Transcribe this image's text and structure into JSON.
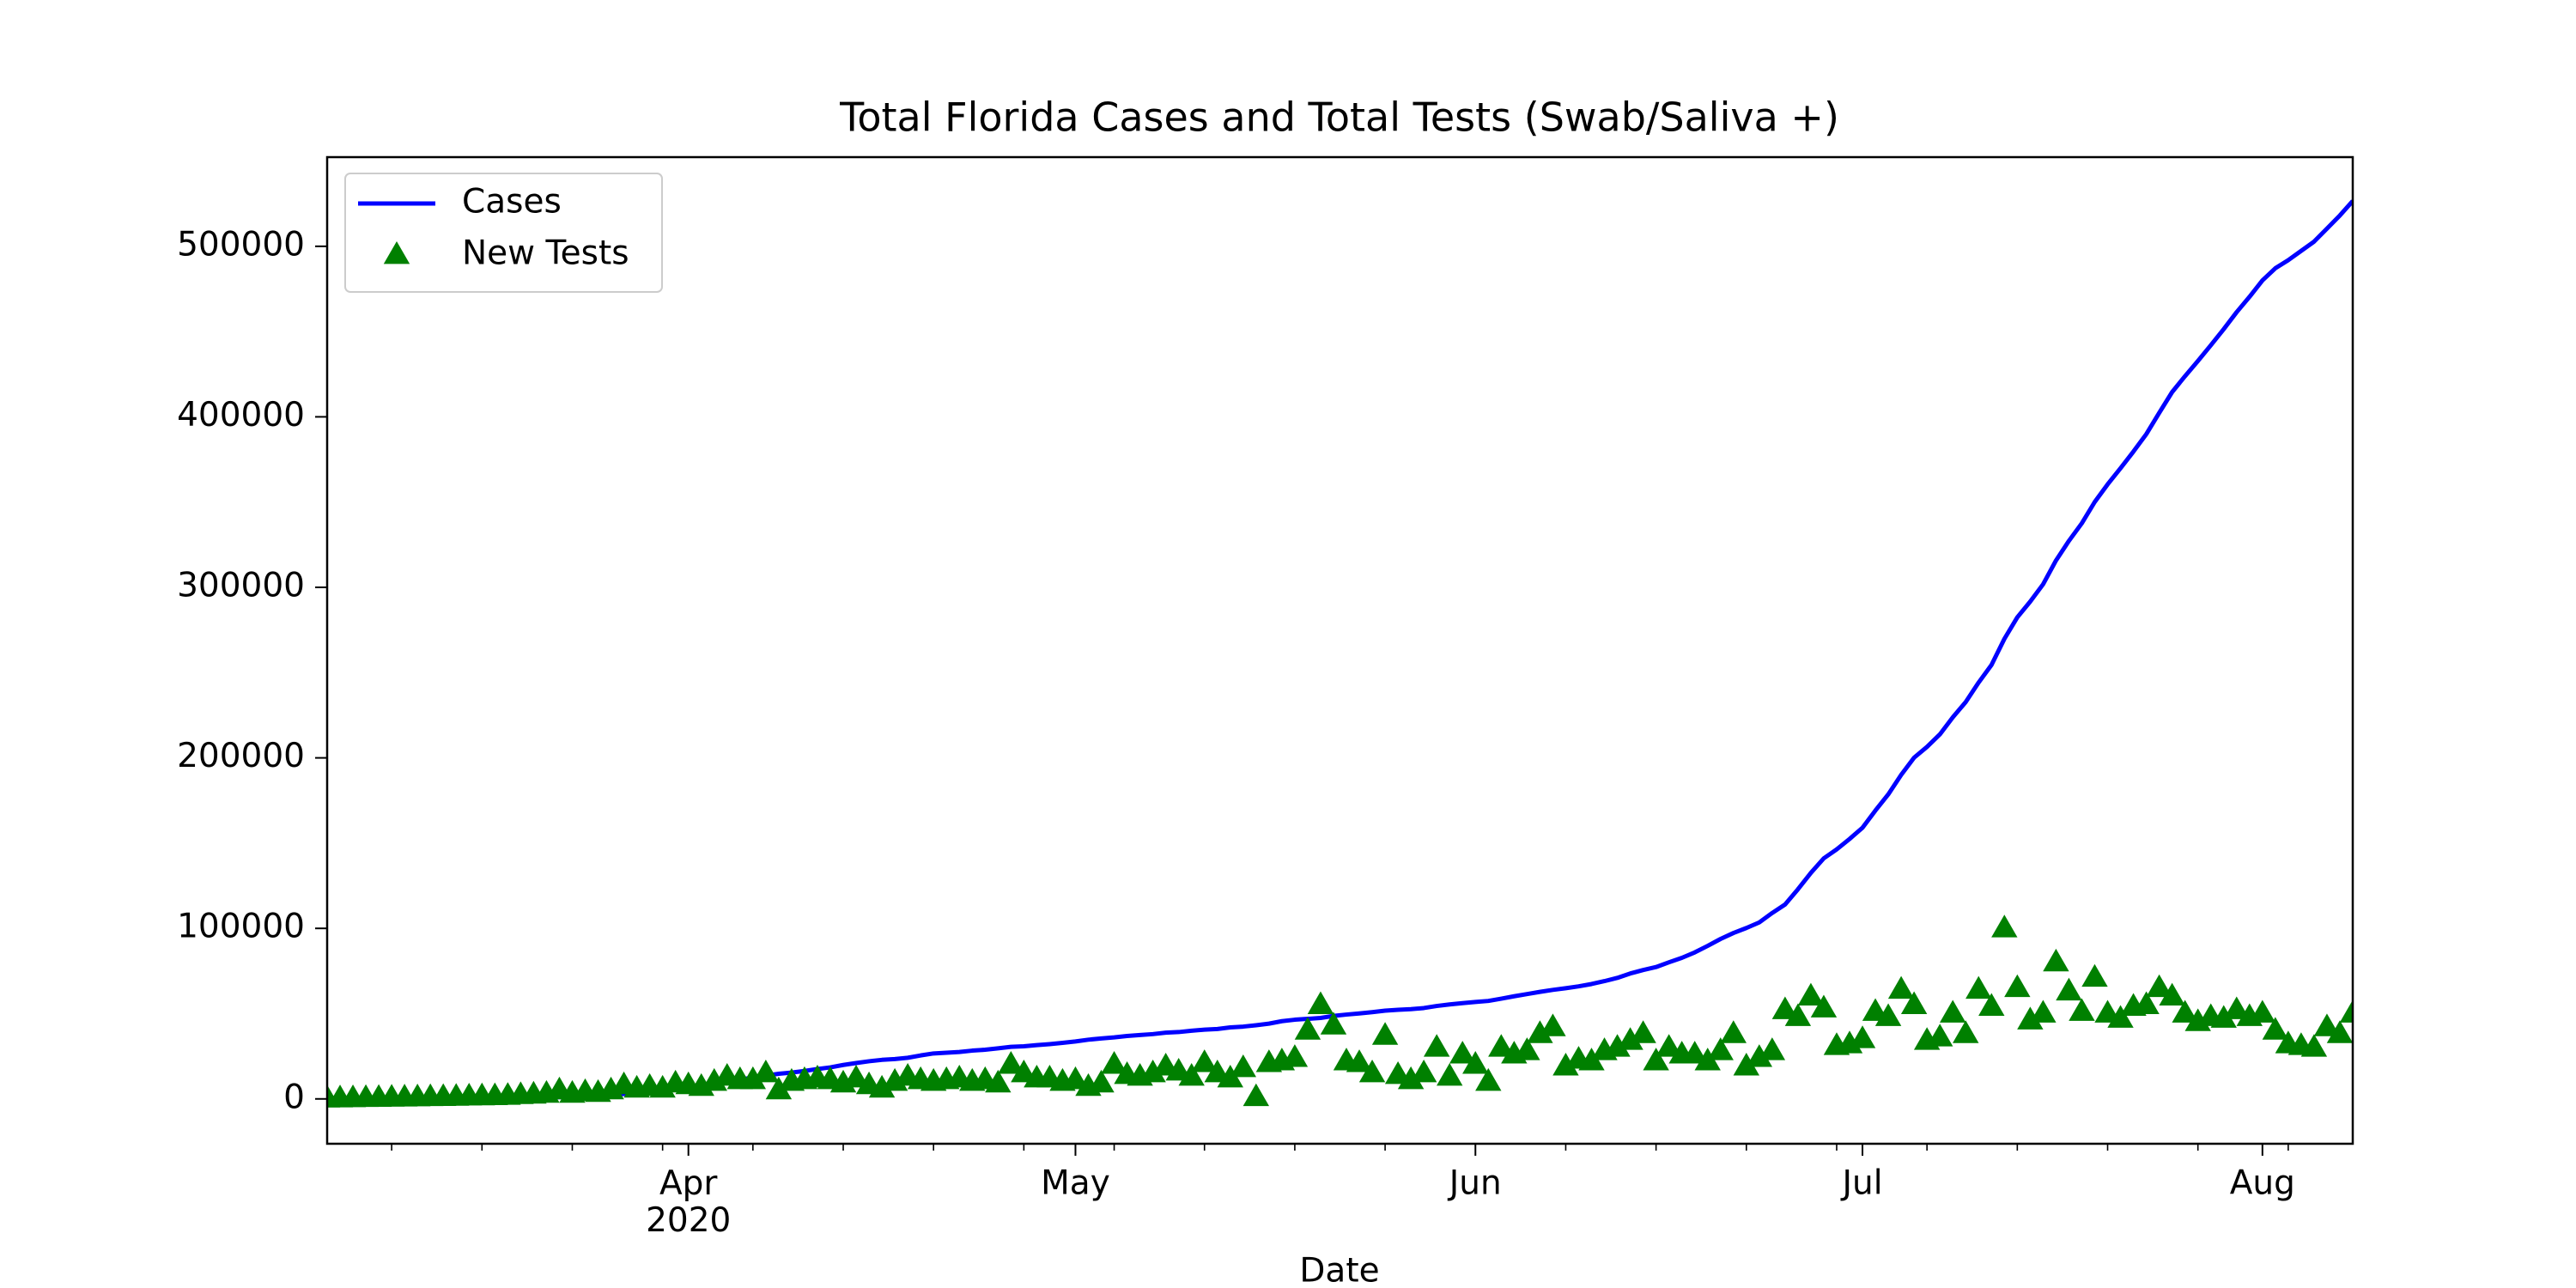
{
  "chart_data": {
    "type": "line",
    "title": "Total Florida Cases and Total Tests (Swab/Saliva +)",
    "xlabel": "Date",
    "x": [
      "2020-03-04",
      "2020-03-05",
      "2020-03-06",
      "2020-03-07",
      "2020-03-08",
      "2020-03-09",
      "2020-03-10",
      "2020-03-11",
      "2020-03-12",
      "2020-03-13",
      "2020-03-14",
      "2020-03-15",
      "2020-03-16",
      "2020-03-17",
      "2020-03-18",
      "2020-03-19",
      "2020-03-20",
      "2020-03-21",
      "2020-03-22",
      "2020-03-23",
      "2020-03-24",
      "2020-03-25",
      "2020-03-26",
      "2020-03-27",
      "2020-03-28",
      "2020-03-29",
      "2020-03-30",
      "2020-03-31",
      "2020-04-01",
      "2020-04-02",
      "2020-04-03",
      "2020-04-04",
      "2020-04-05",
      "2020-04-06",
      "2020-04-07",
      "2020-04-08",
      "2020-04-09",
      "2020-04-10",
      "2020-04-11",
      "2020-04-12",
      "2020-04-13",
      "2020-04-14",
      "2020-04-15",
      "2020-04-16",
      "2020-04-17",
      "2020-04-18",
      "2020-04-19",
      "2020-04-20",
      "2020-04-21",
      "2020-04-22",
      "2020-04-23",
      "2020-04-24",
      "2020-04-25",
      "2020-04-26",
      "2020-04-27",
      "2020-04-28",
      "2020-04-29",
      "2020-04-30",
      "2020-05-01",
      "2020-05-02",
      "2020-05-03",
      "2020-05-04",
      "2020-05-05",
      "2020-05-06",
      "2020-05-07",
      "2020-05-08",
      "2020-05-09",
      "2020-05-10",
      "2020-05-11",
      "2020-05-12",
      "2020-05-13",
      "2020-05-14",
      "2020-05-15",
      "2020-05-16",
      "2020-05-17",
      "2020-05-18",
      "2020-05-19",
      "2020-05-20",
      "2020-05-21",
      "2020-05-22",
      "2020-05-23",
      "2020-05-24",
      "2020-05-25",
      "2020-05-26",
      "2020-05-27",
      "2020-05-28",
      "2020-05-29",
      "2020-05-30",
      "2020-05-31",
      "2020-06-01",
      "2020-06-02",
      "2020-06-03",
      "2020-06-04",
      "2020-06-05",
      "2020-06-06",
      "2020-06-07",
      "2020-06-08",
      "2020-06-09",
      "2020-06-10",
      "2020-06-11",
      "2020-06-12",
      "2020-06-13",
      "2020-06-14",
      "2020-06-15",
      "2020-06-16",
      "2020-06-17",
      "2020-06-18",
      "2020-06-19",
      "2020-06-20",
      "2020-06-21",
      "2020-06-22",
      "2020-06-23",
      "2020-06-24",
      "2020-06-25",
      "2020-06-26",
      "2020-06-27",
      "2020-06-28",
      "2020-06-29",
      "2020-06-30",
      "2020-07-01",
      "2020-07-02",
      "2020-07-03",
      "2020-07-04",
      "2020-07-05",
      "2020-07-06",
      "2020-07-07",
      "2020-07-08",
      "2020-07-09",
      "2020-07-10",
      "2020-07-11",
      "2020-07-12",
      "2020-07-13",
      "2020-07-14",
      "2020-07-15",
      "2020-07-16",
      "2020-07-17",
      "2020-07-18",
      "2020-07-19",
      "2020-07-20",
      "2020-07-21",
      "2020-07-22",
      "2020-07-23",
      "2020-07-24",
      "2020-07-25",
      "2020-07-26",
      "2020-07-27",
      "2020-07-28",
      "2020-07-29",
      "2020-07-30",
      "2020-07-31",
      "2020-08-01",
      "2020-08-02",
      "2020-08-03",
      "2020-08-04",
      "2020-08-05",
      "2020-08-06",
      "2020-08-07",
      "2020-08-08"
    ],
    "series": [
      {
        "name": "Cases",
        "color": "#0000ff",
        "style": "line",
        "values": [
          2,
          4,
          7,
          10,
          13,
          13,
          15,
          21,
          31,
          47,
          70,
          100,
          155,
          216,
          314,
          390,
          520,
          763,
          1007,
          1227,
          1412,
          1682,
          2355,
          2900,
          3763,
          4038,
          5473,
          6338,
          6955,
          8010,
          9585,
          10268,
          11545,
          12350,
          13629,
          14747,
          15455,
          16364,
          17531,
          18494,
          19895,
          21019,
          22081,
          22897,
          23340,
          24119,
          25492,
          26660,
          27058,
          27495,
          28309,
          28832,
          29648,
          30533,
          30839,
          31528,
          32138,
          32846,
          33690,
          34728,
          35463,
          36078,
          36897,
          37439,
          38002,
          38828,
          39199,
          40001,
          40596,
          40982,
          41923,
          42402,
          43210,
          44138,
          45588,
          46442,
          46944,
          47471,
          48675,
          49451,
          50127,
          50867,
          51746,
          52255,
          52634,
          53285,
          54497,
          55424,
          56163,
          56830,
          57447,
          58764,
          60183,
          61488,
          62758,
          63938,
          64904,
          66000,
          67371,
          69069,
          70971,
          73552,
          75568,
          77326,
          80109,
          82719,
          85926,
          89748,
          93797,
          97291,
          100217,
          103503,
          109014,
          114018,
          122960,
          132545,
          141075,
          146341,
          152434,
          158997,
          169106,
          178594,
          190052,
          200111,
          206447,
          213794,
          223783,
          232718,
          244151,
          254511,
          269811,
          282435,
          291629,
          301810,
          315775,
          327241,
          337569,
          350047,
          360394,
          369834,
          379619,
          389868,
          402312,
          414511,
          423855,
          432747,
          441977,
          451423,
          461379,
          470386,
          480028,
          487132,
          491884,
          497330,
          502739,
          510389,
          518075,
          526577
        ]
      },
      {
        "name": "New Tests",
        "color": "#008000",
        "style": "marker",
        "marker": "triangle",
        "values": [
          200,
          300,
          400,
          500,
          600,
          700,
          800,
          900,
          1000,
          1100,
          1200,
          1400,
          1500,
          1600,
          1800,
          2200,
          2500,
          3000,
          5000,
          3000,
          4000,
          3500,
          5000,
          8000,
          6000,
          7000,
          6000,
          9000,
          8000,
          7000,
          10000,
          13000,
          11000,
          11000,
          15000,
          5000,
          10000,
          11000,
          12000,
          11000,
          9000,
          12000,
          8000,
          6000,
          10000,
          13000,
          11000,
          10000,
          11000,
          12000,
          10000,
          11000,
          9000,
          20000,
          15000,
          12000,
          12000,
          10000,
          11000,
          7000,
          9000,
          20000,
          14000,
          13000,
          15000,
          19000,
          16000,
          13000,
          21000,
          15000,
          12000,
          18000,
          1000,
          21000,
          22000,
          24000,
          40000,
          55000,
          43000,
          22000,
          21000,
          15000,
          37000,
          14000,
          11000,
          15000,
          30000,
          13000,
          26000,
          20000,
          10000,
          30000,
          26000,
          28000,
          38000,
          42000,
          19000,
          23000,
          22000,
          28000,
          30000,
          34000,
          38000,
          22000,
          30000,
          26000,
          26000,
          22000,
          28000,
          38000,
          19000,
          24000,
          28000,
          52000,
          48000,
          60000,
          53000,
          31000,
          32000,
          35000,
          51000,
          48000,
          64000,
          55000,
          34000,
          36000,
          50000,
          38000,
          64000,
          54000,
          100000,
          65000,
          46000,
          50000,
          80000,
          63000,
          51000,
          71000,
          50000,
          47000,
          54000,
          55000,
          65000,
          60000,
          50000,
          45000,
          48000,
          47000,
          52000,
          48000,
          50000,
          40000,
          32000,
          31000,
          30000,
          42000,
          38000,
          50000
        ]
      }
    ],
    "xlim": [
      "2020-03-04",
      "2020-08-08"
    ],
    "xticks": [
      {
        "value": "2020-04-01",
        "label": "Apr\n2020"
      },
      {
        "value": "2020-05-01",
        "label": "May"
      },
      {
        "value": "2020-06-01",
        "label": "Jun"
      },
      {
        "value": "2020-07-01",
        "label": "Jul"
      },
      {
        "value": "2020-08-01",
        "label": "Aug"
      }
    ],
    "xminorticks": [
      "2020-03-09",
      "2020-03-16",
      "2020-03-23",
      "2020-03-30",
      "2020-04-06",
      "2020-04-13",
      "2020-04-20",
      "2020-04-27",
      "2020-05-04",
      "2020-05-11",
      "2020-05-18",
      "2020-05-25",
      "2020-06-08",
      "2020-06-15",
      "2020-06-22",
      "2020-06-29",
      "2020-07-06",
      "2020-07-13",
      "2020-07-20",
      "2020-07-27",
      "2020-08-03"
    ],
    "ylim": [
      -26300,
      552300
    ],
    "yticks": [
      0,
      100000,
      200000,
      300000,
      400000,
      500000
    ],
    "grid": false,
    "legend": "upper-left"
  }
}
